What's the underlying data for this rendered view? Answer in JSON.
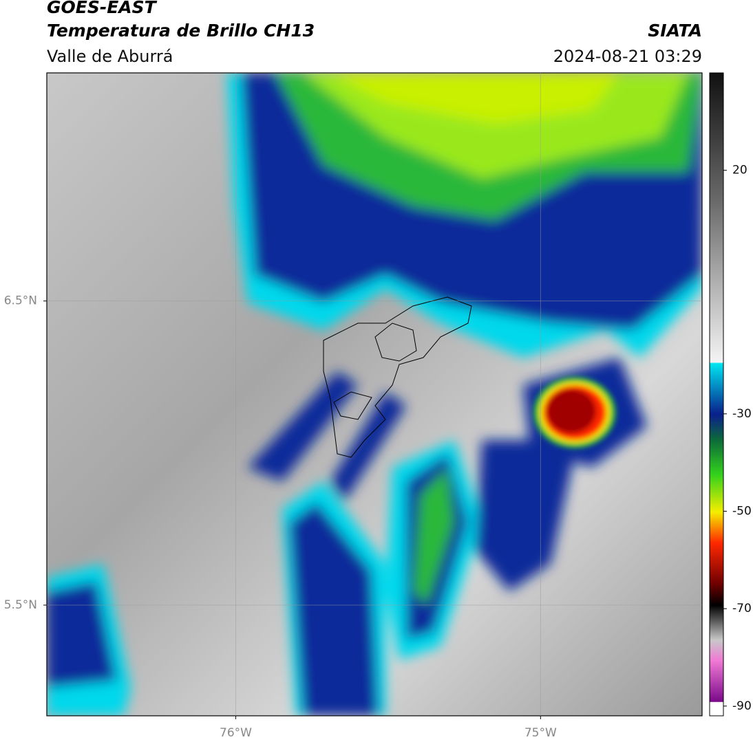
{
  "chart_data": {
    "type": "map",
    "title": "GOES-EAST",
    "subtitle": "Temperatura de Brillo CH13",
    "location": "Valle de Aburrá",
    "source": "SIATA",
    "timestamp": "2024-08-21 03:29",
    "xlim": [
      -76.62,
      -74.47
    ],
    "ylim": [
      5.136,
      7.25
    ],
    "xticks": [
      {
        "value": -76,
        "label": "76°W"
      },
      {
        "value": -75,
        "label": "75°W"
      }
    ],
    "yticks": [
      {
        "value": 6.5,
        "label": "6.5°N"
      },
      {
        "value": 5.5,
        "label": "5.5°N"
      }
    ],
    "grid": true,
    "colorbar": {
      "lim": [
        -92,
        40
      ],
      "ticks": [
        20,
        -30,
        -50,
        -70,
        -90
      ]
    }
  }
}
